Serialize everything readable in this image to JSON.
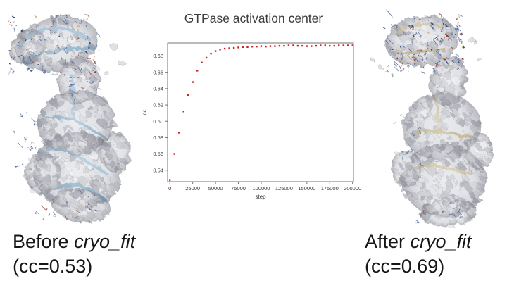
{
  "figure": {
    "background": "#ffffff"
  },
  "captions": {
    "before": {
      "prefix": "Before ",
      "program": "cryo_fit",
      "line2": "(cc=0.53)"
    },
    "after": {
      "prefix": "After ",
      "program": "cryo_fit",
      "line2": "(cc=0.69)"
    }
  },
  "chart_data": {
    "type": "scatter",
    "title": "GTPase activation center",
    "xlabel": "step",
    "ylabel": "cc",
    "marker_color": "#cc2222",
    "marker_shape": "square",
    "axis_color": "#666666",
    "tick_label_color": "#3a3a3a",
    "grid": false,
    "legend": "none",
    "xlim": [
      -2500,
      201000
    ],
    "ylim": [
      0.526,
      0.696
    ],
    "xticks": [
      0,
      25000,
      50000,
      75000,
      100000,
      125000,
      150000,
      175000,
      200000
    ],
    "yticks": [
      0.54,
      0.56,
      0.58,
      0.6,
      0.62,
      0.64,
      0.66,
      0.68
    ],
    "x": [
      0,
      5000,
      10000,
      15000,
      20000,
      25000,
      30000,
      35000,
      40000,
      45000,
      50000,
      55000,
      60000,
      65000,
      70000,
      75000,
      80000,
      85000,
      90000,
      95000,
      100000,
      105000,
      110000,
      115000,
      120000,
      125000,
      130000,
      135000,
      140000,
      145000,
      150000,
      155000,
      160000,
      165000,
      170000,
      175000,
      180000,
      185000,
      190000,
      195000,
      200000
    ],
    "y": [
      0.528,
      0.56,
      0.586,
      0.612,
      0.632,
      0.648,
      0.662,
      0.672,
      0.678,
      0.683,
      0.686,
      0.688,
      0.689,
      0.6895,
      0.69,
      0.6905,
      0.691,
      0.691,
      0.6915,
      0.6915,
      0.692,
      0.6915,
      0.692,
      0.692,
      0.6925,
      0.6925,
      0.693,
      0.693,
      0.6925,
      0.6925,
      0.692,
      0.692,
      0.6925,
      0.693,
      0.693,
      0.6925,
      0.6925,
      0.693,
      0.693,
      0.693,
      0.693
    ]
  }
}
